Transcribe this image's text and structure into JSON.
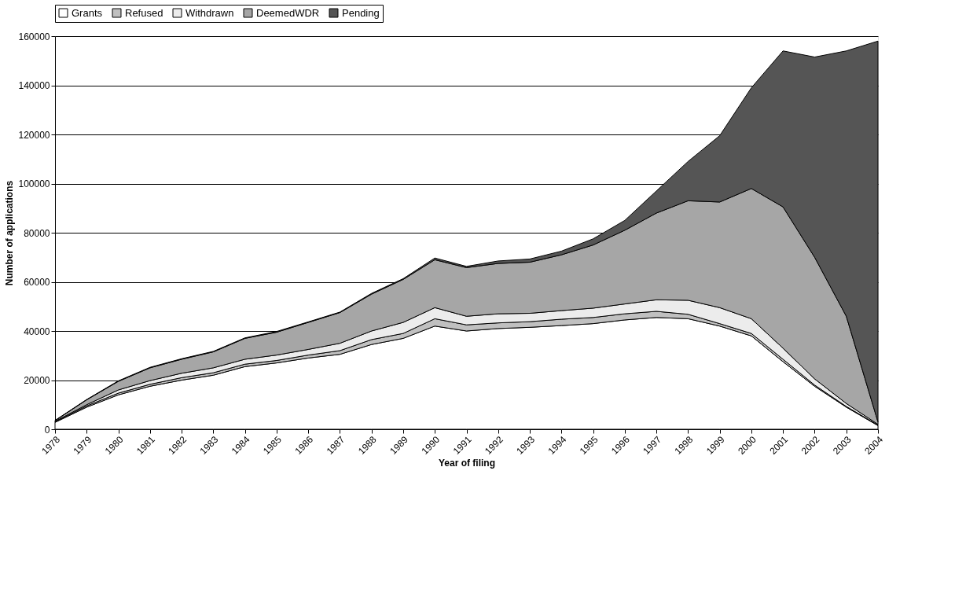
{
  "chart_data": {
    "type": "area",
    "stacked": true,
    "xlabel": "Year of filing",
    "ylabel": "Number of applications",
    "categories": [
      "1978",
      "1979",
      "1980",
      "1981",
      "1982",
      "1983",
      "1984",
      "1985",
      "1986",
      "1987",
      "1988",
      "1989",
      "1990",
      "1991",
      "1992",
      "1993",
      "1994",
      "1995",
      "1996",
      "1997",
      "1998",
      "1999",
      "2000",
      "2001",
      "2002",
      "2003",
      "2004"
    ],
    "series": [
      {
        "name": "Grants",
        "color": "#ffffff",
        "values": [
          2800,
          9000,
          14000,
          17500,
          20000,
          22000,
          25500,
          27000,
          29000,
          30500,
          34500,
          37000,
          42000,
          40000,
          41000,
          41500,
          42200,
          43000,
          44500,
          45500,
          45000,
          42000,
          38000,
          27500,
          17500,
          9000,
          1500
        ]
      },
      {
        "name": "Refused",
        "color": "#c0c0c0",
        "values": [
          200,
          500,
          700,
          800,
          1000,
          1000,
          1000,
          1000,
          1200,
          1500,
          2000,
          2000,
          3000,
          2500,
          2300,
          2300,
          2600,
          2500,
          2500,
          2500,
          1800,
          1000,
          1000,
          1000,
          500,
          300,
          200
        ]
      },
      {
        "name": "Withdrawn",
        "color": "#ececec",
        "values": [
          200,
          500,
          1300,
          1500,
          1800,
          2000,
          2000,
          2200,
          2300,
          3000,
          3500,
          4500,
          4500,
          3500,
          3700,
          3400,
          3500,
          3800,
          4000,
          4700,
          5700,
          6500,
          6000,
          4500,
          2500,
          1200,
          300
        ]
      },
      {
        "name": "DeemedWDR",
        "color": "#a6a6a6",
        "values": [
          300,
          2000,
          3500,
          5200,
          5700,
          6500,
          8500,
          9300,
          11000,
          12500,
          15000,
          17500,
          19500,
          19800,
          20500,
          20800,
          22700,
          25700,
          30000,
          35300,
          40500,
          43000,
          53000,
          57500,
          49500,
          35500,
          1000
        ]
      },
      {
        "name": "Pending",
        "color": "#555555",
        "values": [
          100,
          100,
          200,
          200,
          200,
          200,
          200,
          300,
          200,
          200,
          300,
          300,
          700,
          500,
          1000,
          1300,
          1500,
          2500,
          4000,
          9000,
          16000,
          27000,
          41000,
          63500,
          81500,
          108000,
          155000
        ]
      }
    ],
    "ylim": [
      0,
      160000
    ],
    "yticks": [
      0,
      20000,
      40000,
      60000,
      80000,
      100000,
      120000,
      140000,
      160000
    ],
    "grid": "y",
    "legend": "top"
  }
}
